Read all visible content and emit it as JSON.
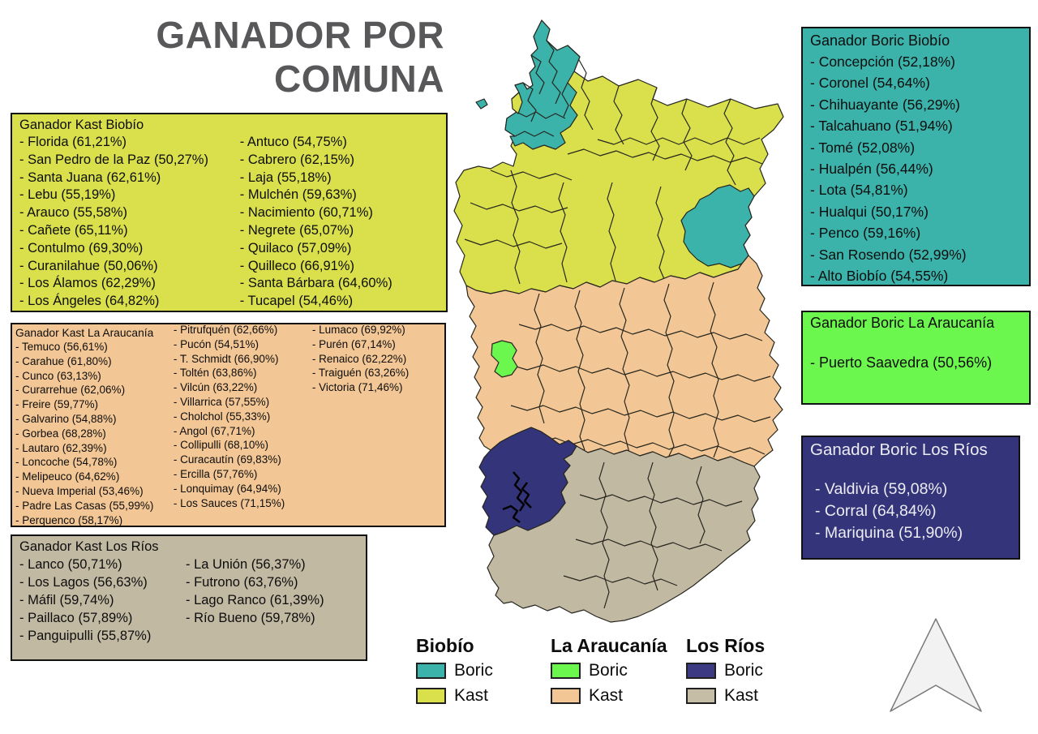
{
  "title": "GANADOR POR COMUNA",
  "boxes": {
    "kast_biobio": {
      "title": "Ganador Kast Biobío",
      "col1": [
        "- Florida (61,21%)",
        "- San Pedro de la Paz (50,27%)",
        "- Santa Juana (62,61%)",
        "- Lebu (55,19%)",
        "- Arauco (55,58%)",
        "- Cañete (65,11%)",
        "- Contulmo (69,30%)",
        "- Curanilahue (50,06%)",
        "- Los Álamos (62,29%)",
        "- Los Ángeles (64,82%)"
      ],
      "col2": [
        "- Antuco (54,75%)",
        "- Cabrero (62,15%)",
        "- Laja (55,18%)",
        "- Mulchén (59,63%)",
        "- Nacimiento (60,71%)",
        "- Negrete (65,07%)",
        "- Quilaco (57,09%)",
        "- Quilleco (66,91%)",
        "- Santa Bárbara (64,60%)",
        "- Tucapel (54,46%)"
      ]
    },
    "kast_araucania": {
      "title": "Ganador Kast La Araucanía",
      "col1": [
        "- Temuco (56,61%)",
        "- Carahue (61,80%)",
        "- Cunco (63,13%)",
        "- Curarrehue (62,06%)",
        "- Freire (59,77%)",
        "- Galvarino (54,88%)",
        "- Gorbea (68,28%)",
        "- Lautaro (62,39%)",
        "- Loncoche (54,78%)",
        "- Melipeuco (64,62%)",
        "- Nueva Imperial (53,46%)",
        "- Padre Las Casas (55,99%)",
        "- Perquenco (58,17%)"
      ],
      "col2": [
        "- Pitrufquén (62,66%)",
        "- Pucón (54,51%)",
        "- T. Schmidt (66,90%)",
        "- Toltén (63,86%)",
        "- Vilcún (63,22%)",
        "- Villarrica (57,55%)",
        "- Cholchol (55,33%)",
        "- Angol (67,71%)",
        "- Collipulli (68,10%)",
        "- Curacautín (69,83%)",
        "- Ercilla (57,76%)",
        "- Lonquimay (64,94%)",
        "- Los Sauces (71,15%)"
      ],
      "col3": [
        "- Lumaco (69,92%)",
        "- Purén (67,14%)",
        "- Renaico (62,22%)",
        "- Traiguén (63,26%)",
        "- Victoria (71,46%)"
      ]
    },
    "kast_losrios": {
      "title": "Ganador Kast Los Ríos",
      "col1": [
        "- Lanco (50,71%)",
        "- Los Lagos (56,63%)",
        "- Máfil (59,74%)",
        "- Paillaco (57,89%)",
        "- Panguipulli (55,87%)"
      ],
      "col2": [
        "- La Unión (56,37%)",
        "- Futrono (63,76%)",
        "- Lago Ranco (61,39%)",
        "- Río Bueno (59,78%)"
      ]
    },
    "boric_biobio": {
      "title": "Ganador Boric Biobío",
      "items": [
        "- Concepción (52,18%)",
        "- Coronel (54,64%)",
        "- Chihuayante (56,29%)",
        "- Talcahuano (51,94%)",
        "- Tomé (52,08%)",
        "- Hualpén (56,44%)",
        "- Lota (54,81%)",
        "- Hualqui (50,17%)",
        "- Penco (59,16%)",
        "- San Rosendo (52,99%)",
        "- Alto Biobío (54,55%)"
      ]
    },
    "boric_araucania": {
      "title": "Ganador Boric La Araucanía",
      "items": [
        "- Puerto Saavedra (50,56%)"
      ]
    },
    "boric_losrios": {
      "title": "Ganador Boric Los Ríos",
      "items": [
        "- Valdivia (59,08%)",
        "- Corral (64,84%)",
        "- Mariquina (51,90%)"
      ]
    }
  },
  "legend": {
    "groups": [
      {
        "region": "Biobío",
        "entries": [
          {
            "label": "Boric",
            "color": "#3bb3aa"
          },
          {
            "label": "Kast",
            "color": "#d9e04b"
          }
        ]
      },
      {
        "region": "La Araucanía",
        "entries": [
          {
            "label": "Boric",
            "color": "#6cf74e"
          },
          {
            "label": "Kast",
            "color": "#f3c795"
          }
        ]
      },
      {
        "region": "Los Ríos",
        "entries": [
          {
            "label": "Boric",
            "color": "#3c3a82"
          },
          {
            "label": "Kast",
            "color": "#c6bda6"
          }
        ]
      }
    ]
  },
  "map": {
    "regions": [
      "Biobío",
      "La Araucanía",
      "Los Ríos"
    ]
  },
  "colors": {
    "biobio_boric": "#3bb3aa",
    "biobio_kast": "#d9e04b",
    "araucania_boric": "#6cf74e",
    "araucania_kast": "#f3c795",
    "losrios_boric": "#34347b",
    "losrios_kast": "#c2b9a3",
    "title_text": "#58585a"
  }
}
